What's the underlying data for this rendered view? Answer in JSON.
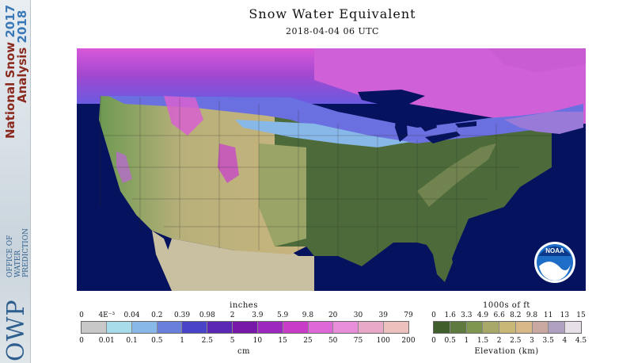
{
  "banner": {
    "line1_text": "National Snow",
    "line1_year": "2017",
    "line2_text": "Analysis",
    "line2_year": "2018",
    "org_small": [
      "OFFICE OF",
      "WATER",
      "PREDICTION"
    ],
    "org_logo": "OWP"
  },
  "title": "Snow Water Equivalent",
  "timestamp": "2018-04-04 06 UTC",
  "noaa_logo": "NOAA",
  "swe_legend": {
    "top_label": "inches",
    "bottom_label": "cm",
    "inches_ticks": [
      "0",
      "4E⁻³",
      "0.04",
      "0.2",
      "0.39",
      "0.98",
      "2",
      "3.9",
      "5.9",
      "9.8",
      "20",
      "30",
      "39",
      "79"
    ],
    "cm_ticks": [
      "0",
      "0.01",
      "0.1",
      "0.5",
      "1",
      "2.5",
      "5",
      "10",
      "15",
      "25",
      "50",
      "75",
      "100",
      "200"
    ],
    "colors": [
      "#c8c8c8",
      "#a8dcea",
      "#88b8e8",
      "#6a7fdc",
      "#4a45c8",
      "#5a28b4",
      "#7818a8",
      "#9c28c0",
      "#c83cc8",
      "#de68d8",
      "#e88ed8",
      "#e8a8c8",
      "#ecc0bc"
    ]
  },
  "elev_legend": {
    "top_label": "1000s of ft",
    "bottom_label": "Elevation (km)",
    "ft_ticks": [
      "0",
      "1.6",
      "3.3",
      "4.9",
      "6.6",
      "8.2",
      "9.8",
      "11",
      "13",
      "15"
    ],
    "km_ticks": [
      "0",
      "0.5",
      "1",
      "1.5",
      "2",
      "2.5",
      "3",
      "3.5",
      "4",
      "4.5"
    ],
    "colors": [
      "#3f5e2c",
      "#5e7a3e",
      "#7f9650",
      "#a8a868",
      "#c8b878",
      "#d8b888",
      "#c8a8a0",
      "#b0a0c0",
      "#e8e0e8"
    ]
  }
}
